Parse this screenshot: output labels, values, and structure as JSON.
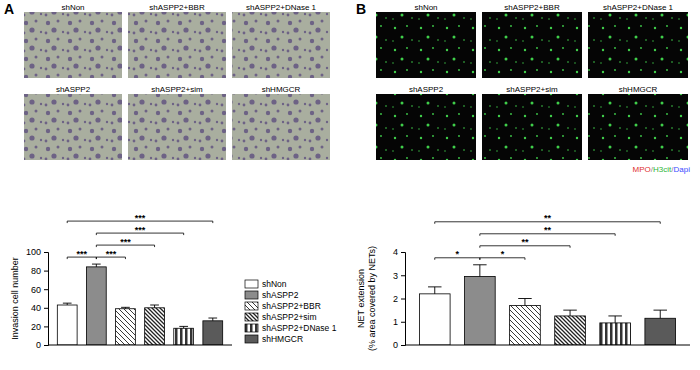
{
  "chart_data": [
    {
      "type": "bar",
      "panel_label": "A",
      "image_labels": [
        "shNon",
        "shASPP2+BBR",
        "shASPP2+DNase 1",
        "shASPP2",
        "shASPP2+sim",
        "shHMGCR"
      ],
      "ylabel": "Invasion cell number",
      "categories": [
        "shNon",
        "shASPP2",
        "shASPP2+BBR",
        "shASPP2+sim",
        "shASPP2+DNase 1",
        "shHMGCR"
      ],
      "values": [
        43,
        84,
        39,
        40,
        18,
        26
      ],
      "errors": [
        2,
        3,
        1.5,
        3,
        2,
        3
      ],
      "colors": [
        "#ffffff",
        "#8c8c8c",
        "#ffffff",
        "#ffffff",
        "#ffffff",
        "#5a5a5a"
      ],
      "ylim": [
        0,
        100
      ],
      "yticks": [
        0,
        20,
        40,
        60,
        80,
        100
      ],
      "tick_labels": "y",
      "legend": "right",
      "significance": [
        {
          "pair": [
            0,
            1
          ],
          "label": "***"
        },
        {
          "pair": [
            1,
            2
          ],
          "label": "***"
        },
        {
          "pair": [
            1,
            3
          ],
          "label": "***"
        },
        {
          "pair": [
            1,
            4
          ],
          "label": "***"
        },
        {
          "pair": [
            0,
            5
          ],
          "label": "***"
        }
      ]
    },
    {
      "type": "bar",
      "panel_label": "B",
      "image_labels": [
        "shNon",
        "shASPP2+BBR",
        "shASPP2+DNase 1",
        "shASPP2",
        "shASPP2+sim",
        "shHMGCR"
      ],
      "stain_label": "MPO/H3cit/Dapi",
      "ylabel": [
        "NET extension",
        "(% area covered by NETs)"
      ],
      "values": [
        2.2,
        2.95,
        1.7,
        1.25,
        0.95,
        1.15
      ],
      "errors": [
        0.3,
        0.5,
        0.3,
        0.25,
        0.3,
        0.35
      ],
      "colors": [
        "#ffffff",
        "#8c8c8c",
        "#ffffff",
        "#ffffff",
        "#ffffff",
        "#5a5a5a"
      ],
      "ylim": [
        0,
        4
      ],
      "yticks": [
        0,
        1,
        2,
        3,
        4
      ],
      "tick_labels": "y",
      "significance": [
        {
          "pair": [
            0,
            1
          ],
          "label": "*"
        },
        {
          "pair": [
            1,
            2
          ],
          "label": "*"
        },
        {
          "pair": [
            1,
            3
          ],
          "label": "**"
        },
        {
          "pair": [
            1,
            4
          ],
          "label": "**"
        },
        {
          "pair": [
            0,
            5
          ],
          "label": "**"
        }
      ]
    }
  ]
}
